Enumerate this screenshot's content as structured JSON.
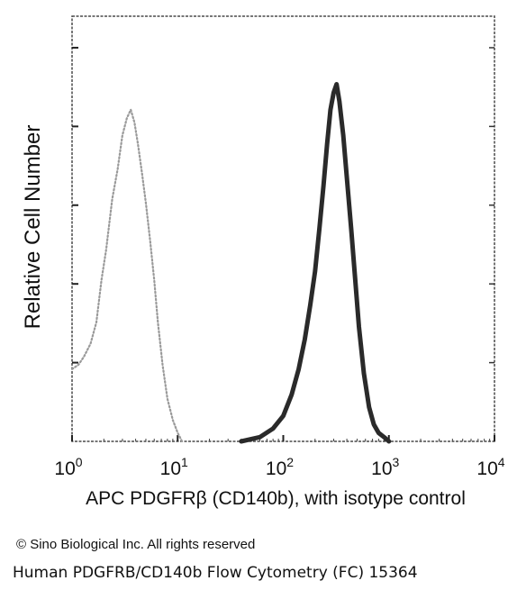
{
  "chart_data": {
    "type": "line",
    "ylabel": "Relative Cell Number",
    "xlabel": "APC PDGFRβ (CD140b), with isotype control",
    "x_scale": "log",
    "xlim": [
      1,
      10000
    ],
    "ylim": [
      0,
      100
    ],
    "x_ticks": [
      {
        "value": 1,
        "base": "10",
        "exp": "0"
      },
      {
        "value": 10,
        "base": "10",
        "exp": "1"
      },
      {
        "value": 100,
        "base": "10",
        "exp": "2"
      },
      {
        "value": 1000,
        "base": "10",
        "exp": "3"
      },
      {
        "value": 10000,
        "base": "10",
        "exp": "4"
      }
    ],
    "series": [
      {
        "style": "dotted",
        "color": "#9a9a9a",
        "points": [
          [
            1.0,
            17
          ],
          [
            1.15,
            18
          ],
          [
            1.3,
            20
          ],
          [
            1.5,
            23
          ],
          [
            1.7,
            28
          ],
          [
            1.9,
            38
          ],
          [
            2.1,
            45
          ],
          [
            2.4,
            57
          ],
          [
            2.7,
            64
          ],
          [
            3.0,
            72
          ],
          [
            3.3,
            76
          ],
          [
            3.6,
            78
          ],
          [
            3.9,
            75
          ],
          [
            4.2,
            70
          ],
          [
            4.6,
            63
          ],
          [
            5.0,
            56
          ],
          [
            5.5,
            47
          ],
          [
            6.0,
            38
          ],
          [
            6.5,
            28
          ],
          [
            7.2,
            18
          ],
          [
            8.0,
            10
          ],
          [
            9.0,
            5
          ],
          [
            10.0,
            2
          ],
          [
            11.0,
            0
          ]
        ]
      },
      {
        "style": "solid",
        "color": "#2a2a2a",
        "points": [
          [
            40,
            0
          ],
          [
            60,
            1
          ],
          [
            80,
            3
          ],
          [
            100,
            6
          ],
          [
            120,
            11
          ],
          [
            140,
            17
          ],
          [
            160,
            24
          ],
          [
            180,
            32
          ],
          [
            200,
            40
          ],
          [
            220,
            50
          ],
          [
            240,
            60
          ],
          [
            260,
            70
          ],
          [
            280,
            78
          ],
          [
            300,
            82
          ],
          [
            320,
            84
          ],
          [
            340,
            80
          ],
          [
            370,
            72
          ],
          [
            400,
            62
          ],
          [
            440,
            50
          ],
          [
            480,
            38
          ],
          [
            520,
            27
          ],
          [
            580,
            16
          ],
          [
            650,
            8
          ],
          [
            720,
            4
          ],
          [
            800,
            2
          ],
          [
            900,
            1
          ],
          [
            1000,
            0
          ]
        ]
      }
    ]
  },
  "copyright": "© Sino Biological Inc. All rights reserved",
  "caption": "Human PDGFRB/CD140b Flow Cytometry (FC) 15364"
}
